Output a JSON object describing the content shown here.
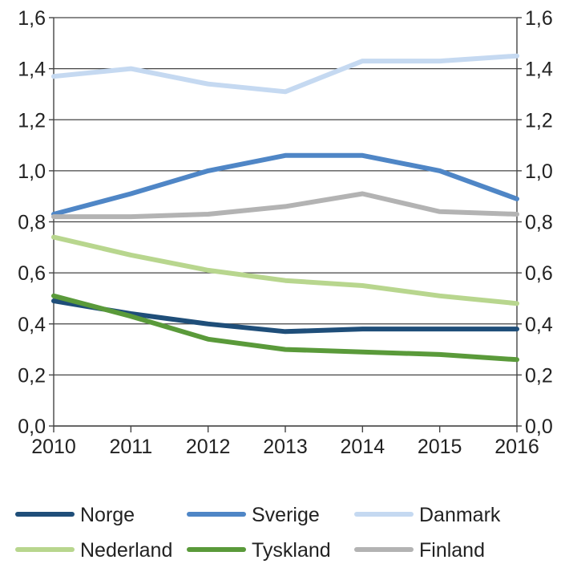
{
  "chart_data": {
    "type": "line",
    "title": "",
    "xlabel": "",
    "ylabel": "",
    "x": [
      "2010",
      "2011",
      "2012",
      "2013",
      "2014",
      "2015",
      "2016"
    ],
    "ylim": [
      0.0,
      1.6
    ],
    "y_ticks": [
      0.0,
      0.2,
      0.4,
      0.6,
      0.8,
      1.0,
      1.2,
      1.4,
      1.6
    ],
    "y_tick_labels_left": [
      "0,0",
      "0,2",
      "0,4",
      "0,6",
      "0,8",
      "1,0",
      "1,2",
      "1,4",
      "1,6"
    ],
    "y_tick_labels_right": [
      "0,0",
      "0,2",
      "0,4",
      "0,6",
      "0,8",
      "1,0",
      "1,2",
      "1,4",
      "1,6"
    ],
    "grid": true,
    "legend_position": "bottom",
    "series": [
      {
        "name": "Norge",
        "color": "#1f4e79",
        "values": [
          0.49,
          0.44,
          0.4,
          0.37,
          0.38,
          0.38,
          0.38
        ]
      },
      {
        "name": "Sverige",
        "color": "#4f86c6",
        "values": [
          0.83,
          0.91,
          1.0,
          1.06,
          1.06,
          1.0,
          0.89
        ]
      },
      {
        "name": "Danmark",
        "color": "#c5d9f1",
        "values": [
          1.37,
          1.4,
          1.34,
          1.31,
          1.43,
          1.43,
          1.45
        ]
      },
      {
        "name": "Nederland",
        "color": "#b8d68e",
        "values": [
          0.74,
          0.67,
          0.61,
          0.57,
          0.55,
          0.51,
          0.48
        ]
      },
      {
        "name": "Tyskland",
        "color": "#5a9a3a",
        "values": [
          0.51,
          0.43,
          0.34,
          0.3,
          0.29,
          0.28,
          0.26
        ]
      },
      {
        "name": "Finland",
        "color": "#b3b3b3",
        "values": [
          0.82,
          0.82,
          0.83,
          0.86,
          0.91,
          0.84,
          0.83
        ]
      }
    ]
  }
}
